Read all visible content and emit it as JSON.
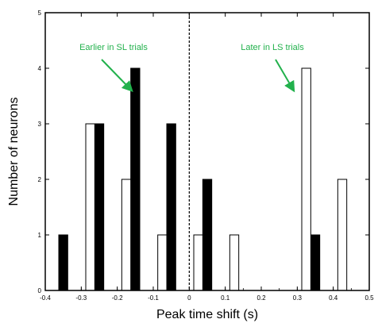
{
  "chart_data": {
    "type": "bar",
    "xlabel": "Peak time shift (s)",
    "ylabel": "Number of neurons",
    "xlim": [
      -0.4,
      0.5
    ],
    "ylim": [
      0,
      5
    ],
    "bin_width": 0.025,
    "x_ticks": [
      "-0.4",
      "-0.3",
      "-0.2",
      "-0.1",
      "0",
      "0.1",
      "0.2",
      "0.3",
      "0.4",
      "0.5"
    ],
    "y_ticks": [
      "0",
      "1",
      "2",
      "3",
      "4",
      "5"
    ],
    "grid": false,
    "series": [
      {
        "fill": "black",
        "bars": [
          {
            "x": -0.35,
            "value": 1
          },
          {
            "x": -0.25,
            "value": 3
          },
          {
            "x": -0.15,
            "value": 4
          },
          {
            "x": -0.05,
            "value": 3
          },
          {
            "x": 0.05,
            "value": 2
          },
          {
            "x": 0.35,
            "value": 1
          }
        ]
      },
      {
        "fill": "white",
        "bars": [
          {
            "x": -0.275,
            "value": 3
          },
          {
            "x": -0.175,
            "value": 2
          },
          {
            "x": -0.075,
            "value": 1
          },
          {
            "x": 0.025,
            "value": 1
          },
          {
            "x": 0.125,
            "value": 1
          },
          {
            "x": 0.325,
            "value": 4
          },
          {
            "x": 0.425,
            "value": 2
          }
        ]
      }
    ],
    "reference_line": {
      "x": 0,
      "style": "dashed"
    },
    "annotations": [
      {
        "text": "Earlier in SL trials",
        "color": "#22b14c",
        "arrow_to": {
          "x": -0.16,
          "y": 3.6
        }
      },
      {
        "text": "Later in LS trials",
        "color": "#22b14c",
        "arrow_to": {
          "x": 0.29,
          "y": 3.6
        }
      }
    ]
  }
}
